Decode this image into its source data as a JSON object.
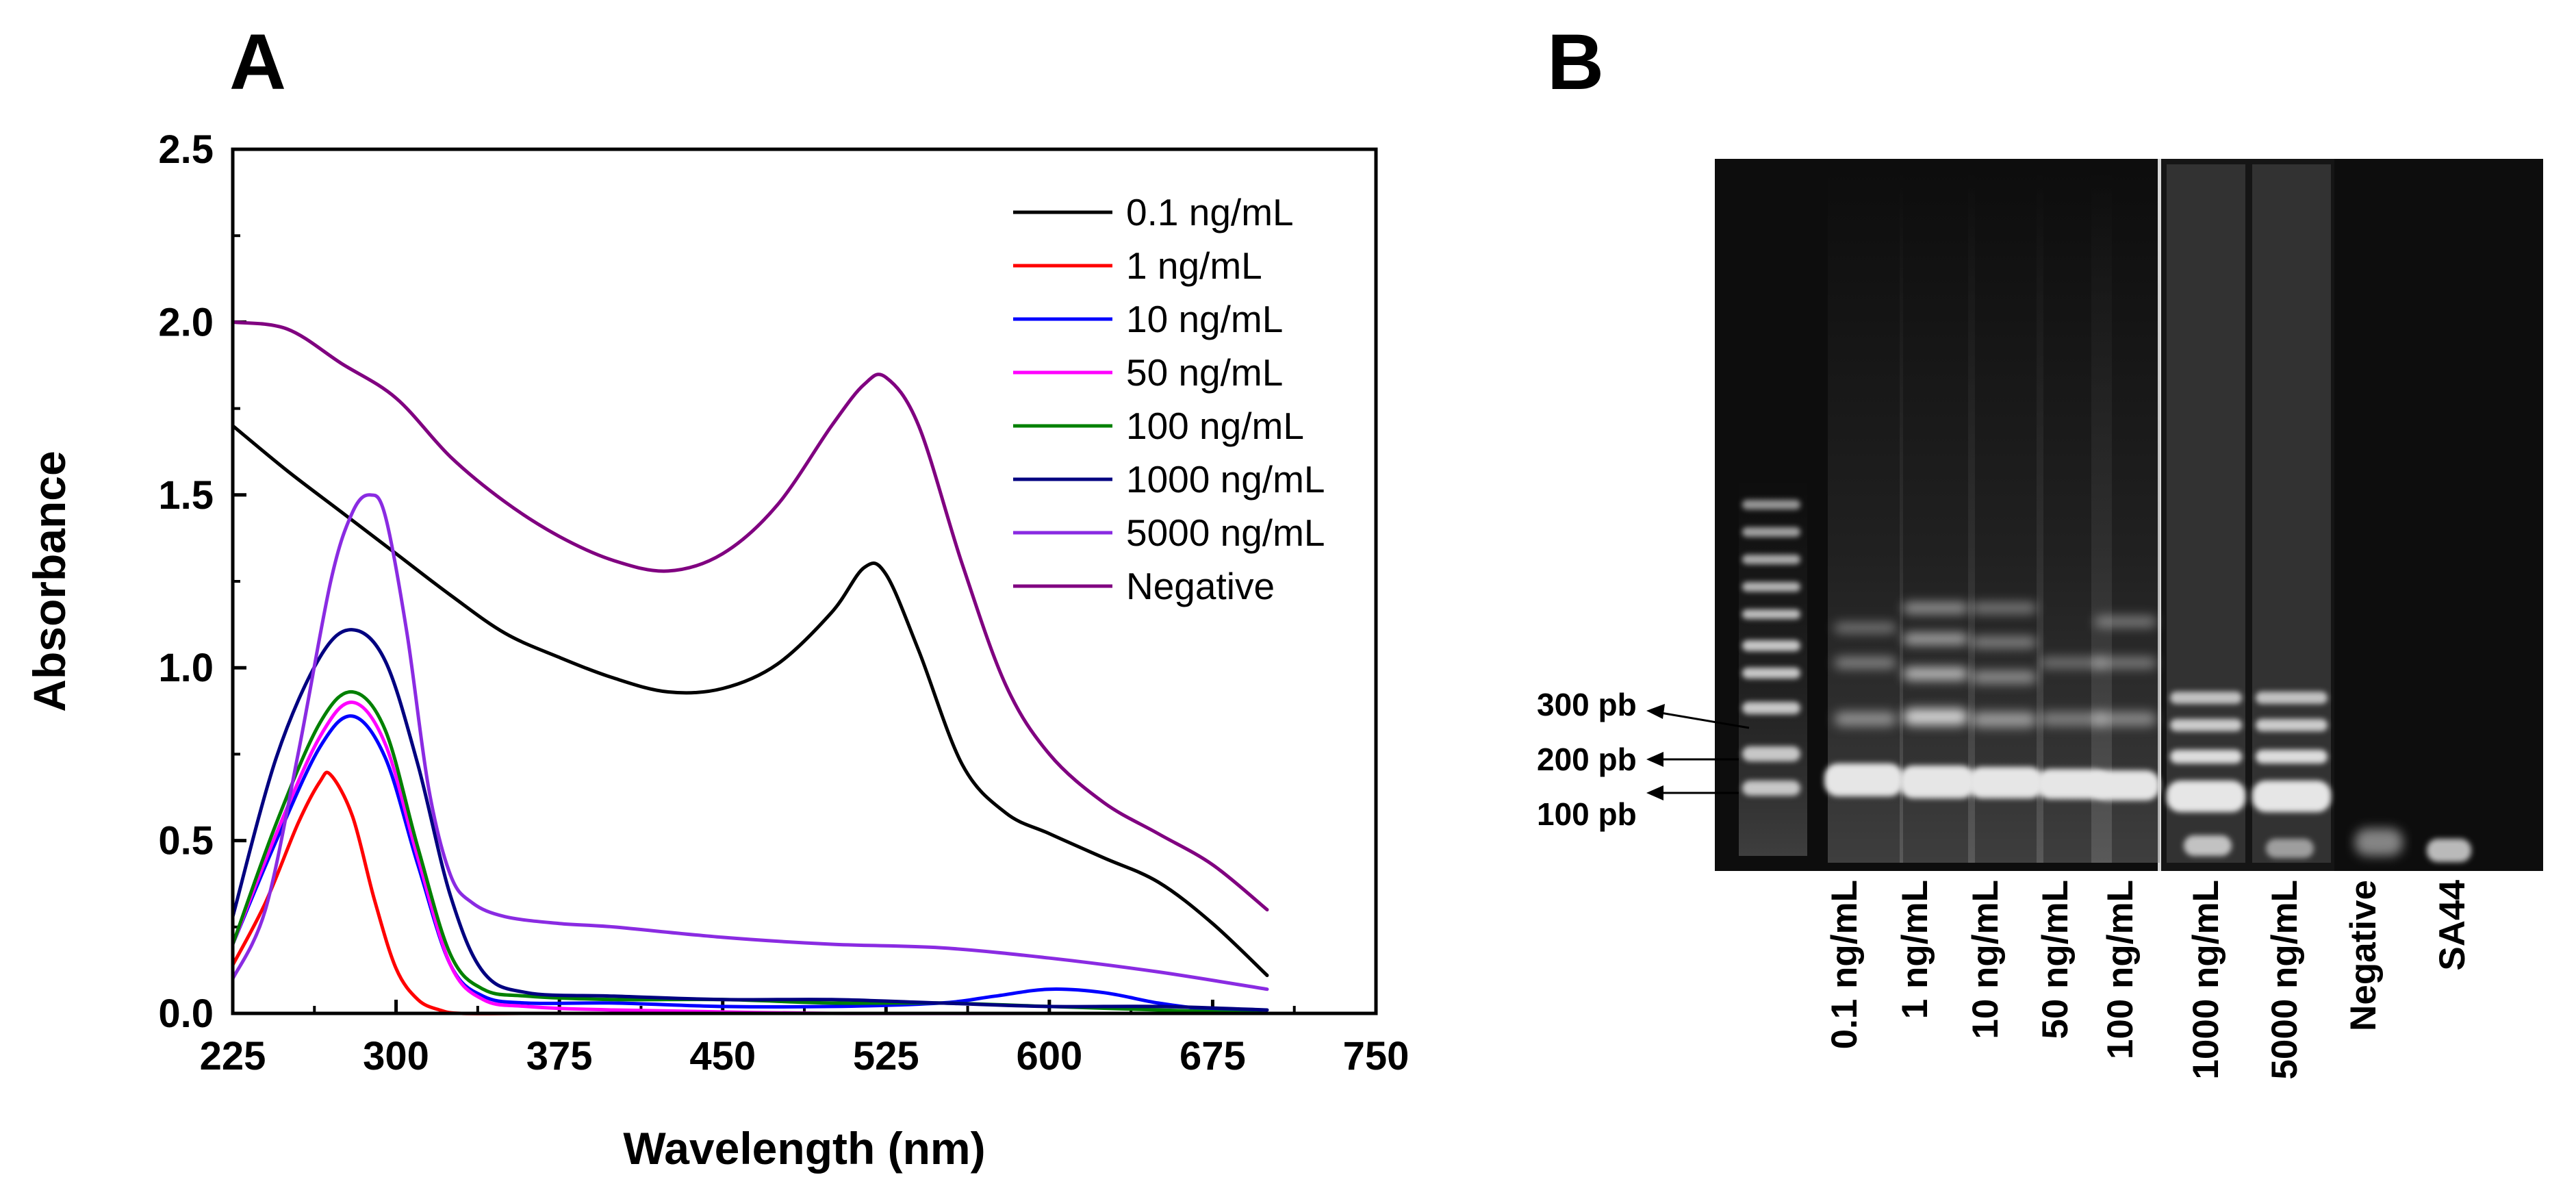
{
  "panels": {
    "a_label": "A",
    "b_label": "B"
  },
  "chart_data": {
    "type": "line",
    "title": "",
    "xlabel": "Wavelength (nm)",
    "ylabel": "Absorbance",
    "xlim": [
      225,
      750
    ],
    "ylim": [
      0,
      2.5
    ],
    "xticks": [
      "225",
      "300",
      "375",
      "450",
      "525",
      "600",
      "675",
      "750"
    ],
    "yticks": [
      "0.0",
      "0.5",
      "1.0",
      "1.5",
      "2.0",
      "2.5"
    ],
    "legend_position": "top-right",
    "series": [
      {
        "name": "0.1 ng/mL",
        "color": "#000000",
        "x": [
          225,
          250,
          275,
          300,
          325,
          350,
          375,
          400,
          425,
          450,
          475,
          500,
          515,
          525,
          540,
          560,
          580,
          600,
          625,
          650,
          675,
          700
        ],
        "y": [
          1.7,
          1.57,
          1.45,
          1.33,
          1.21,
          1.1,
          1.03,
          0.97,
          0.93,
          0.94,
          1.01,
          1.16,
          1.29,
          1.27,
          1.05,
          0.72,
          0.58,
          0.52,
          0.45,
          0.38,
          0.26,
          0.11
        ]
      },
      {
        "name": "1 ng/mL",
        "color": "#ff0000",
        "x": [
          225,
          240,
          255,
          265,
          270,
          280,
          290,
          300,
          310,
          320,
          330,
          360,
          400,
          500,
          600,
          700
        ],
        "y": [
          0.14,
          0.32,
          0.55,
          0.67,
          0.69,
          0.57,
          0.33,
          0.13,
          0.04,
          0.01,
          0.0,
          0.0,
          0.0,
          0.0,
          0.0,
          0.0
        ]
      },
      {
        "name": "10 ng/mL",
        "color": "#0000ff",
        "x": [
          225,
          245,
          265,
          280,
          295,
          310,
          325,
          340,
          360,
          400,
          450,
          500,
          550,
          575,
          600,
          625,
          650,
          675,
          700
        ],
        "y": [
          0.2,
          0.5,
          0.77,
          0.86,
          0.74,
          0.43,
          0.14,
          0.05,
          0.03,
          0.03,
          0.02,
          0.02,
          0.03,
          0.05,
          0.07,
          0.06,
          0.03,
          0.01,
          0.0
        ]
      },
      {
        "name": "50 ng/mL",
        "color": "#ff00ff",
        "x": [
          225,
          245,
          265,
          280,
          295,
          310,
          325,
          340,
          360,
          400,
          500,
          600,
          700
        ],
        "y": [
          0.2,
          0.52,
          0.8,
          0.9,
          0.78,
          0.45,
          0.14,
          0.04,
          0.02,
          0.01,
          0.0,
          0.0,
          0.0
        ]
      },
      {
        "name": "100 ng/mL",
        "color": "#008000",
        "x": [
          225,
          245,
          265,
          280,
          295,
          310,
          325,
          340,
          360,
          400,
          450,
          500,
          550,
          600,
          650,
          700
        ],
        "y": [
          0.2,
          0.55,
          0.84,
          0.93,
          0.82,
          0.48,
          0.17,
          0.07,
          0.05,
          0.04,
          0.04,
          0.03,
          0.03,
          0.02,
          0.01,
          0.0
        ]
      },
      {
        "name": "1000 ng/mL",
        "color": "#000080",
        "x": [
          225,
          245,
          265,
          280,
          295,
          310,
          325,
          340,
          360,
          400,
          450,
          500,
          550,
          600,
          650,
          700
        ],
        "y": [
          0.28,
          0.74,
          1.03,
          1.11,
          1.02,
          0.72,
          0.34,
          0.12,
          0.06,
          0.05,
          0.04,
          0.04,
          0.03,
          0.02,
          0.02,
          0.01
        ]
      },
      {
        "name": "5000 ng/mL",
        "color": "#8a2be2",
        "x": [
          225,
          240,
          255,
          270,
          280,
          288,
          295,
          305,
          315,
          325,
          335,
          350,
          375,
          400,
          450,
          500,
          550,
          600,
          650,
          700
        ],
        "y": [
          0.1,
          0.3,
          0.75,
          1.25,
          1.45,
          1.5,
          1.44,
          1.1,
          0.65,
          0.4,
          0.32,
          0.28,
          0.26,
          0.25,
          0.22,
          0.2,
          0.19,
          0.16,
          0.12,
          0.07
        ]
      },
      {
        "name": "Negative",
        "color": "#800080",
        "x": [
          225,
          250,
          275,
          300,
          325,
          350,
          375,
          400,
          425,
          450,
          475,
          500,
          515,
          525,
          540,
          560,
          580,
          600,
          625,
          650,
          675,
          700
        ],
        "y": [
          2.0,
          1.98,
          1.88,
          1.78,
          1.61,
          1.48,
          1.38,
          1.31,
          1.28,
          1.33,
          1.47,
          1.7,
          1.82,
          1.84,
          1.7,
          1.3,
          0.95,
          0.75,
          0.61,
          0.52,
          0.43,
          0.3
        ]
      }
    ]
  },
  "gel": {
    "marker_labels": [
      "300 pb",
      "200 pb",
      "100 pb"
    ],
    "lane_labels": [
      "0.1 ng/mL",
      "1 ng/mL",
      "10 ng/mL",
      "50 ng/mL",
      "100 ng/mL",
      "1000 ng/mL",
      "5000 ng/mL",
      "Negative",
      "SA44"
    ]
  }
}
